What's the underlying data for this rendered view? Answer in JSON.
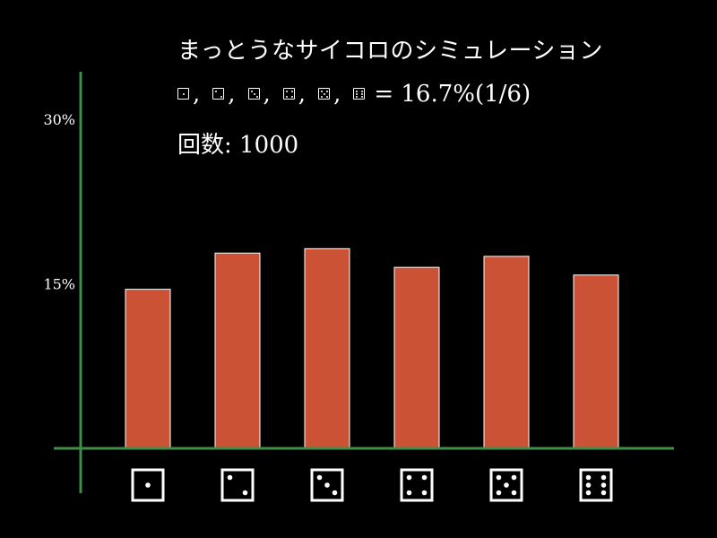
{
  "title": "まっとうなサイコロのシミュレーション",
  "probability": {
    "separator": ",",
    "equals": "=",
    "value": "16.7%(1/6)"
  },
  "trials": {
    "label": "回数:",
    "value": "1000"
  },
  "colors": {
    "background": "#000000",
    "axis": "#3e8e4a",
    "bar_fill": "#cc5236",
    "bar_stroke": "#ffffff",
    "text": "#ffffff"
  },
  "chart_data": {
    "type": "bar",
    "categories": [
      "1",
      "2",
      "3",
      "4",
      "5",
      "6"
    ],
    "category_icons": [
      "die-face-1-icon",
      "die-face-2-icon",
      "die-face-3-icon",
      "die-face-4-icon",
      "die-face-5-icon",
      "die-face-6-icon"
    ],
    "values": [
      14.5,
      17.8,
      18.2,
      16.5,
      17.5,
      15.8
    ],
    "y_unit": "%",
    "yticks": [
      {
        "value": 15,
        "label": "15%"
      },
      {
        "value": 30,
        "label": "30%"
      }
    ],
    "ylim": [
      0,
      30
    ],
    "grid": false,
    "legend": "none"
  }
}
